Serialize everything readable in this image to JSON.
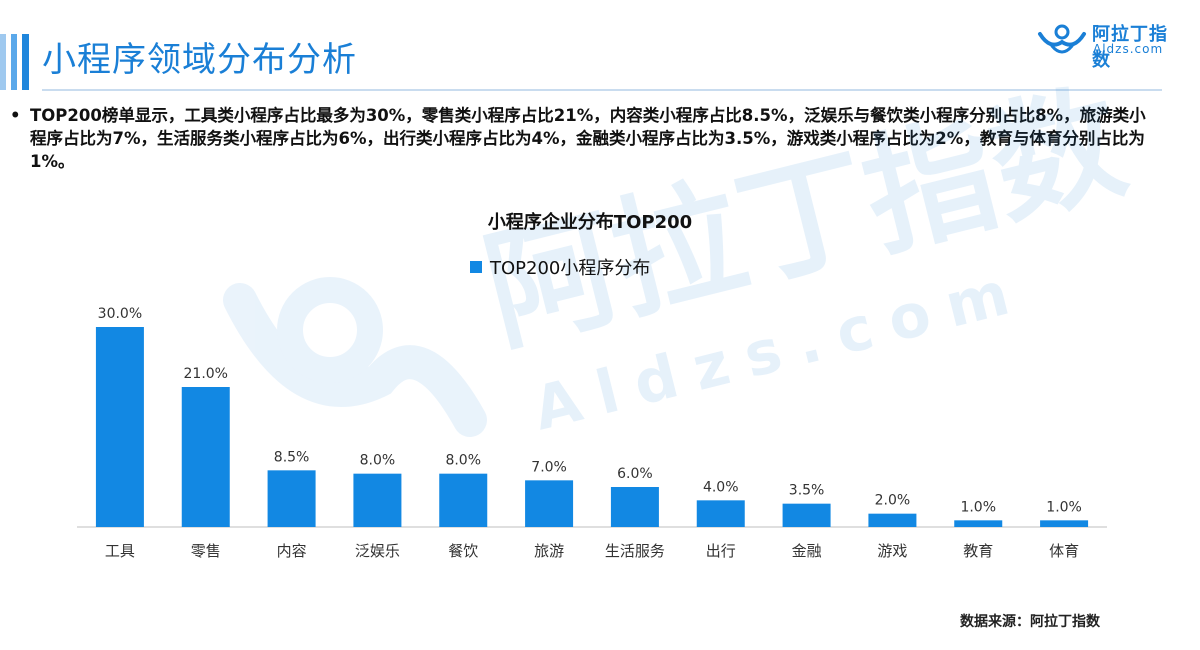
{
  "header": {
    "title": "小程序领域分布分析",
    "logo_name": "阿拉丁指数",
    "logo_domain": "Aldzs.com"
  },
  "summary": {
    "bullet": "•",
    "text": "TOP200榜单显示，工具类小程序占比最多为30%，零售类小程序占比21%，内容类小程序占比8.5%，泛娱乐与餐饮类小程序分别占比8%，旅游类小程序占比为7%，生活服务类小程序占比为6%，出行类小程序占比为4%，金融类小程序占比为3.5%，游戏类小程序占比为2%，教育与体育分别占比为1%。"
  },
  "watermark": {
    "name": "阿拉丁指数",
    "domain": "Aldzs.com"
  },
  "colors": {
    "bar": "#1288e3",
    "title": "#1a7fd6"
  },
  "chart_data": {
    "type": "bar",
    "title": "小程序企业分布TOP200",
    "categories": [
      "工具",
      "零售",
      "内容",
      "泛娱乐",
      "餐饮",
      "旅游",
      "生活服务",
      "出行",
      "金融",
      "游戏",
      "教育",
      "体育"
    ],
    "series": [
      {
        "name": "TOP200小程序分布",
        "values": [
          30.0,
          21.0,
          8.5,
          8.0,
          8.0,
          7.0,
          6.0,
          4.0,
          3.5,
          2.0,
          1.0,
          1.0
        ],
        "labels": [
          "30.0%",
          "21.0%",
          "8.5%",
          "8.0%",
          "8.0%",
          "7.0%",
          "6.0%",
          "4.0%",
          "3.5%",
          "2.0%",
          "1.0%",
          "1.0%"
        ]
      }
    ],
    "ylim": [
      0,
      30
    ],
    "grid": false,
    "legend": "top-center"
  },
  "footer": {
    "source": "数据来源：阿拉丁指数"
  }
}
